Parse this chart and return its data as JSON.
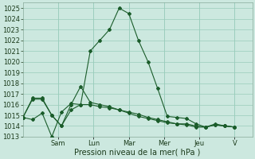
{
  "title": "",
  "xlabel": "Pression niveau de la mer( hPa )",
  "ylabel": "",
  "background_color": "#cce8df",
  "plot_bg_color": "#cce8df",
  "grid_color": "#99ccbb",
  "line_color": "#1a5c2a",
  "marker_color": "#1a5c2a",
  "ylim": [
    1013,
    1025.5
  ],
  "yticks": [
    1013,
    1014,
    1015,
    1016,
    1017,
    1018,
    1019,
    1020,
    1021,
    1022,
    1023,
    1024,
    1025
  ],
  "series": [
    [
      1014.8,
      1014.6,
      1015.2,
      1013.0,
      1015.3,
      1016.1,
      1016.0,
      1021.0,
      1022.0,
      1023.0,
      1025.0,
      1024.5,
      1022.0,
      1020.0,
      1017.5,
      1014.9,
      1014.8,
      1014.7,
      1014.2,
      1013.9,
      1014.2,
      1014.0,
      1013.9
    ],
    [
      1014.8,
      1016.5,
      1016.5,
      1015.0,
      1014.0,
      1015.5,
      1016.0,
      1016.0,
      1015.8,
      1015.7,
      1015.5,
      1015.3,
      1015.1,
      1014.8,
      1014.6,
      1014.4,
      1014.2,
      1014.2,
      1014.0,
      1013.9,
      1014.1,
      1014.0,
      1013.9
    ],
    [
      1014.8,
      1016.6,
      1016.6,
      1015.0,
      1014.0,
      1016.0,
      1017.7,
      1016.2,
      1016.0,
      1015.8,
      1015.5,
      1015.2,
      1014.9,
      1014.7,
      1014.5,
      1014.3,
      1014.2,
      1014.1,
      1013.9,
      1013.9,
      1014.1,
      1014.0,
      1013.9
    ]
  ],
  "x_tick_positions": [
    2,
    4,
    6,
    8,
    10,
    12
  ],
  "x_tick_labels": [
    "Sam",
    "Lun",
    "Mar",
    "Mer",
    "Jeu",
    "V"
  ],
  "n_points": 23,
  "xlabel_fontsize": 7,
  "tick_fontsize": 6
}
